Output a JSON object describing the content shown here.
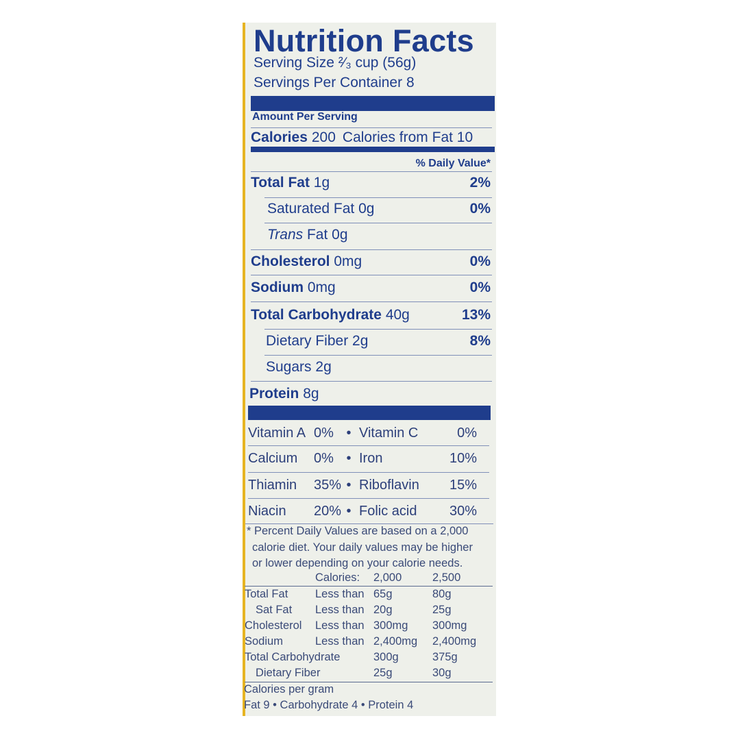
{
  "title": "Nutrition Facts",
  "serving_size": "Serving Size ²⁄₃ cup (56g)",
  "servings_per_container": "Servings Per Container  8",
  "amount_per_serving": "Amount Per Serving",
  "calories": {
    "label": "Calories",
    "value": "200",
    "from_fat": "Calories from Fat 10"
  },
  "daily_value_header": "% Daily Value*",
  "nutrients": [
    {
      "name": "Total Fat",
      "amount": "1g",
      "dv": "2%"
    },
    {
      "name": "Saturated Fat",
      "amount": "0g",
      "dv": "0%"
    },
    {
      "name": "Trans",
      "suffix": "Fat 0g",
      "dv": ""
    },
    {
      "name": "Cholesterol",
      "amount": "0mg",
      "dv": "0%"
    },
    {
      "name": "Sodium",
      "amount": "0mg",
      "dv": "0%"
    },
    {
      "name": "Total Carbohydrate",
      "amount": "40g",
      "dv": "13%"
    },
    {
      "name": "Dietary Fiber",
      "amount": "2g",
      "dv": "8%"
    },
    {
      "name": "Sugars",
      "amount": "2g",
      "dv": ""
    },
    {
      "name": "Protein",
      "amount": "8g",
      "dv": ""
    }
  ],
  "vitamins": [
    {
      "a": "Vitamin A",
      "av": "0%",
      "b": "Vitamin C",
      "bv": "0%"
    },
    {
      "a": "Calcium",
      "av": "0%",
      "b": "Iron",
      "bv": "10%"
    },
    {
      "a": "Thiamin",
      "av": "35%",
      "b": "Riboflavin",
      "bv": "15%"
    },
    {
      "a": "Niacin",
      "av": "20%",
      "b": "Folic acid",
      "bv": "30%"
    }
  ],
  "bullet": "•",
  "footnote": [
    "* Percent Daily Values are based on a 2,000",
    "calorie diet. Your daily values may be higher",
    "or lower depending on your calorie needs."
  ],
  "dv_table": {
    "header": [
      "",
      "Calories:",
      "2,000",
      "2,500"
    ],
    "rows": [
      [
        "Total Fat",
        "Less than",
        "65g",
        "80g"
      ],
      [
        "Sat Fat",
        "Less than",
        "20g",
        "25g"
      ],
      [
        "Cholesterol",
        "Less than",
        "300mg",
        "300mg"
      ],
      [
        "Sodium",
        "Less than",
        "2,400mg",
        "2,400mg"
      ],
      [
        "Total Carbohydrate",
        "",
        "300g",
        "375g"
      ],
      [
        "Dietary Fiber",
        "",
        "25g",
        "30g"
      ]
    ]
  },
  "calories_per_gram": "Calories per gram",
  "calories_per_gram_values": "Fat 9 • Carbohydrate 4 • Protein 4",
  "colors": {
    "ink": "#1f3d8c",
    "panel": "#eef0ea",
    "edge": "#e6b422"
  }
}
